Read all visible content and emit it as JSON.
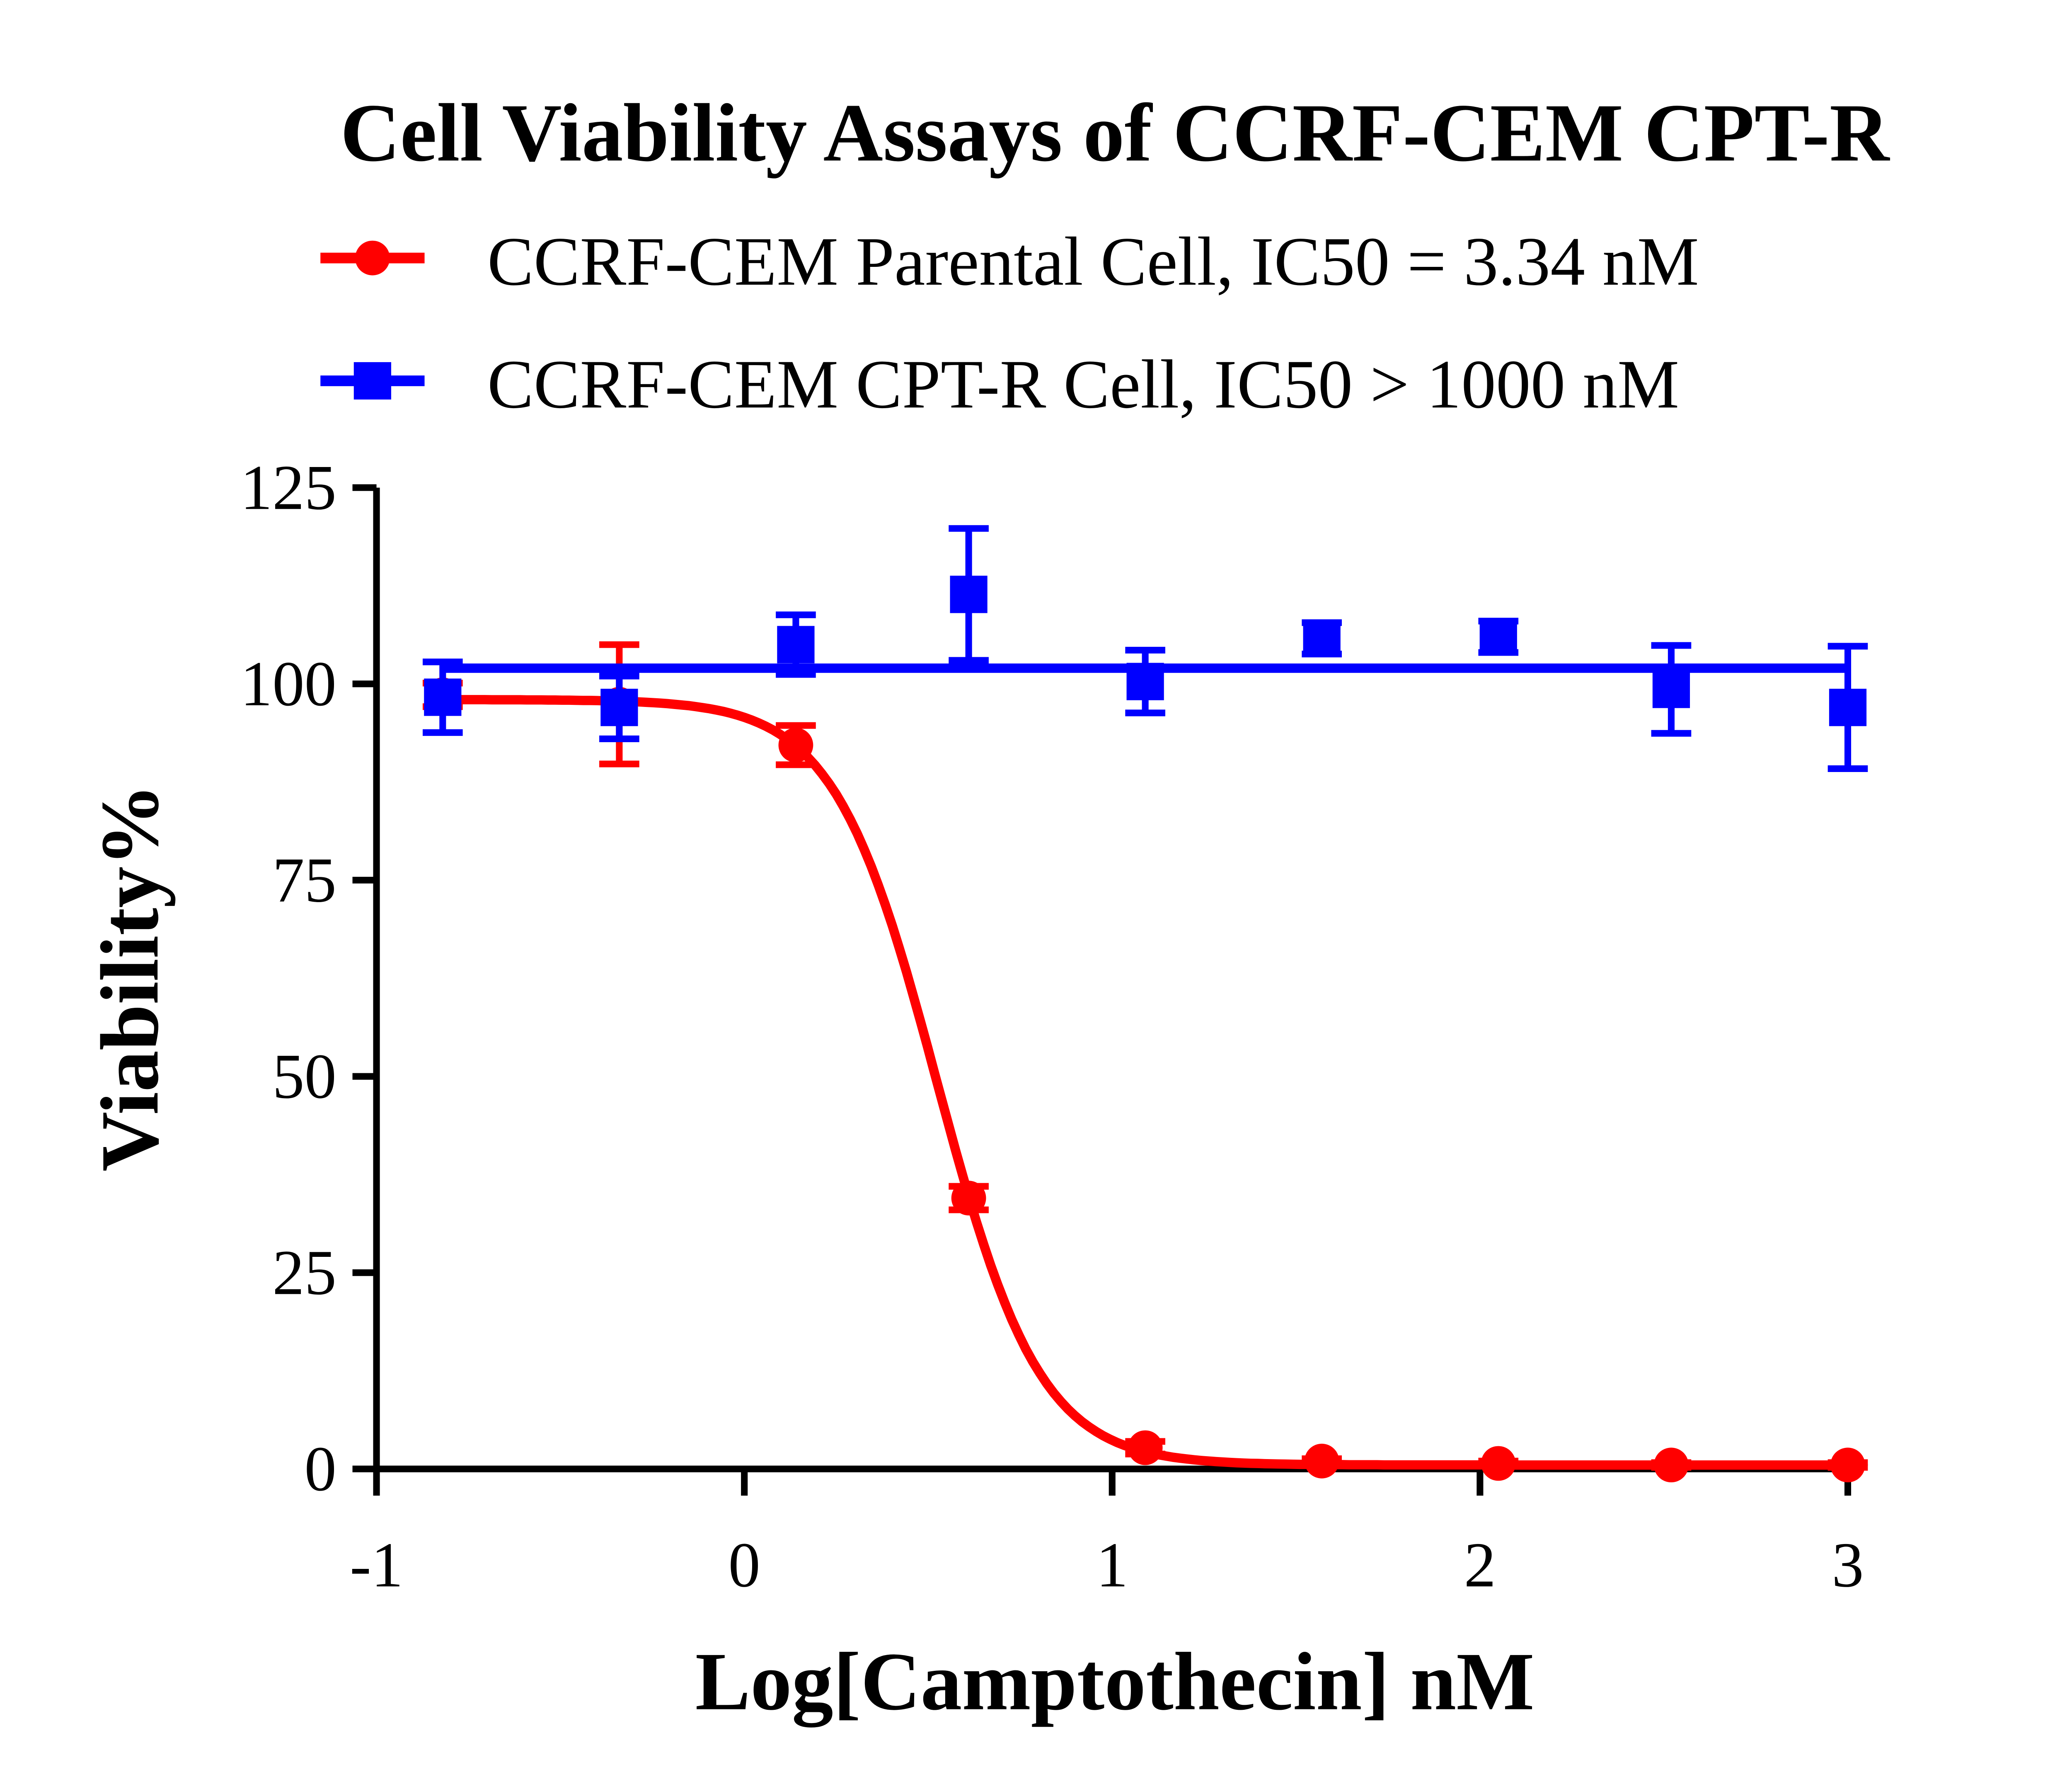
{
  "chart_data": {
    "type": "scatter",
    "title": "Cell Viability Assays of CCRF-CEM CPT-R",
    "xlabel": "Log[Camptothecin] nM",
    "ylabel": "Viability%",
    "xlim": [
      -1,
      3
    ],
    "ylim": [
      0,
      125
    ],
    "xticks": [
      "-1",
      "0",
      "1",
      "2",
      "3"
    ],
    "yticks": [
      "0",
      "25",
      "50",
      "75",
      "100",
      "125"
    ],
    "grid": false,
    "legend_position": "top",
    "series": [
      {
        "name": "CCRF-CEM Parental Cell, IC50 = 3.34 nM",
        "color": "#ff0000",
        "marker": "circle",
        "x": [
          -0.82,
          -0.34,
          0.14,
          0.61,
          1.09,
          1.57,
          2.05,
          2.52,
          3.0
        ],
        "y": [
          98.6,
          97.4,
          92.2,
          34.5,
          2.7,
          1.0,
          0.7,
          0.5,
          0.5
        ],
        "error": [
          1.5,
          7.6,
          2.5,
          1.5,
          0.8,
          0.3,
          0.3,
          0.3,
          0.3
        ],
        "fit": {
          "model": "sigmoidal dose-response",
          "top": 98,
          "bottom": 0.5,
          "logIC50": 0.524,
          "hill": 3.1
        }
      },
      {
        "name": "CCRF-CEM CPT-R Cell, IC50 > 1000 nM",
        "color": "#0000ff",
        "marker": "square",
        "x": [
          -0.82,
          -0.34,
          0.14,
          0.61,
          1.09,
          1.57,
          2.05,
          2.52,
          3.0
        ],
        "y": [
          98.3,
          97.0,
          105.0,
          111.4,
          100.3,
          105.8,
          106.0,
          99.3,
          97.0
        ],
        "error": [
          4.5,
          4.0,
          3.8,
          8.4,
          4.0,
          2.0,
          2.0,
          5.6,
          7.8
        ],
        "fit": {
          "model": "constant",
          "value": 102
        }
      }
    ]
  }
}
